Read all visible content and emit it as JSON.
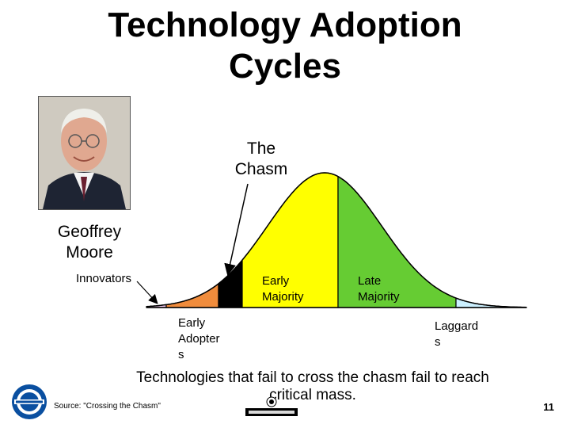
{
  "title_line1": "Technology Adoption",
  "title_line2": "Cycles",
  "chasm_label_line1": "The",
  "chasm_label_line2": "Chasm",
  "person_label_line1": "Geoffrey",
  "person_label_line2": "Moore",
  "segments": {
    "innovators": "Innovators",
    "early_adopters_line1": "Early",
    "early_adopters_line2": "Adopter",
    "early_adopters_line3": "s",
    "early_majority_line1": "Early",
    "early_majority_line2": "Majority",
    "late_majority_line1": "Late",
    "late_majority_line2": "Majority",
    "laggards_line1": "Laggard",
    "laggards_line2": "s"
  },
  "message_line1": "Technologies that fail to cross the chasm fail to reach",
  "message_line2": "critical mass.",
  "source": "Source: \"Crossing the Chasm\"",
  "page_number": "11",
  "colors": {
    "innovators": "#f0c8f0",
    "early_adopters": "#f08c3c",
    "chasm": "#000000",
    "early_majority": "#ffff00",
    "late_majority": "#66cc33",
    "laggards": "#ccf0ff"
  }
}
